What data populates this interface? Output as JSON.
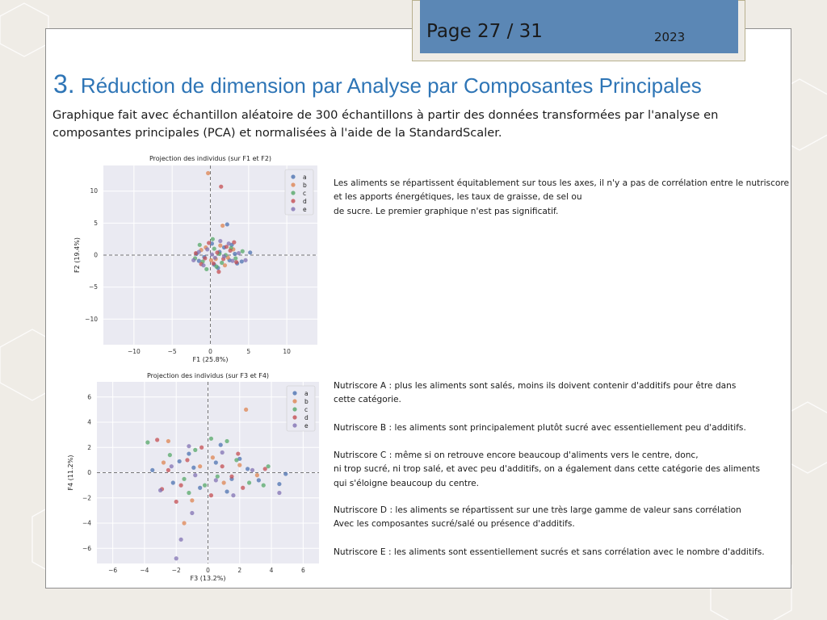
{
  "header": {
    "page_label": "Page 27 / 31",
    "year": "2023"
  },
  "title": {
    "number": "3.",
    "text": " Réduction de dimension par Analyse par Composantes Principales"
  },
  "subtitle": "Graphique fait avec échantillon aléatoire de 300 échantillons à partir des données transformées par l'analyse en composantes principales (PCA) et normalisées à l'aide de la StandardScaler.",
  "colors": {
    "title_blue": "#2e75b6",
    "page_box": "#5b87b5",
    "plot_bg": "#eaeaf2",
    "series": [
      "#4c72b0",
      "#dd8452",
      "#55a868",
      "#c44e52",
      "#8172b3"
    ]
  },
  "chart_data": [
    {
      "type": "scatter",
      "title": "Projection des individus (sur F1 et F2)",
      "xlabel": "F1 (25.8%)",
      "ylabel": "F2 (19.4%)",
      "xlim": [
        -14,
        14
      ],
      "ylim": [
        -14,
        14
      ],
      "xticks": [
        -10,
        -5,
        0,
        5,
        10
      ],
      "yticks": [
        10,
        5,
        0,
        -5,
        -10
      ],
      "grid": true,
      "legend_position": "top-right",
      "series": [
        {
          "name": "a",
          "color": "#4c72b0",
          "points": [
            [
              1.2,
              0.5
            ],
            [
              2.5,
              -0.8
            ],
            [
              -0.8,
              -0.3
            ],
            [
              3.2,
              0.2
            ],
            [
              0.5,
              -1.5
            ],
            [
              1.8,
              1.2
            ],
            [
              -1.5,
              -0.9
            ],
            [
              4.1,
              -1.0
            ],
            [
              2.2,
              4.8
            ],
            [
              0.2,
              1.8
            ],
            [
              -1.8,
              0.2
            ],
            [
              3.5,
              -1.3
            ],
            [
              1.0,
              -2.0
            ],
            [
              5.2,
              0.4
            ],
            [
              2.8,
              1.6
            ]
          ]
        },
        {
          "name": "b",
          "color": "#dd8452",
          "points": [
            [
              -0.3,
              12.8
            ],
            [
              1.3,
              1.5
            ],
            [
              0.7,
              -0.6
            ],
            [
              -1.2,
              0.8
            ],
            [
              2.3,
              -0.4
            ],
            [
              1.6,
              4.6
            ],
            [
              0.1,
              -0.8
            ],
            [
              3.0,
              0.9
            ],
            [
              -0.6,
              1.2
            ],
            [
              1.9,
              -1.6
            ]
          ]
        },
        {
          "name": "c",
          "color": "#55a868",
          "points": [
            [
              0.5,
              1.0
            ],
            [
              -1.0,
              -1.0
            ],
            [
              2.0,
              0.0
            ],
            [
              1.5,
              -1.2
            ],
            [
              -2.0,
              -0.5
            ],
            [
              0.3,
              2.5
            ],
            [
              3.3,
              -0.5
            ],
            [
              -0.5,
              -2.2
            ],
            [
              1.2,
              0.2
            ],
            [
              2.7,
              1.1
            ],
            [
              -1.4,
              1.6
            ],
            [
              0.8,
              -1.8
            ],
            [
              4.2,
              0.6
            ]
          ]
        },
        {
          "name": "d",
          "color": "#c44e52",
          "points": [
            [
              1.4,
              10.7
            ],
            [
              0.9,
              0.4
            ],
            [
              -0.7,
              -0.5
            ],
            [
              2.1,
              1.3
            ],
            [
              1.7,
              -0.6
            ],
            [
              -1.9,
              0.3
            ],
            [
              3.4,
              -1.1
            ],
            [
              0.4,
              -1.3
            ],
            [
              2.6,
              0.7
            ],
            [
              -0.2,
              1.9
            ],
            [
              1.1,
              -2.6
            ],
            [
              -1.2,
              -1.4
            ],
            [
              3.1,
              2.0
            ]
          ]
        },
        {
          "name": "e",
          "color": "#8172b3",
          "points": [
            [
              0.2,
              0.1
            ],
            [
              -1.5,
              0.5
            ],
            [
              1.8,
              -0.2
            ],
            [
              2.9,
              -0.9
            ],
            [
              -0.9,
              -1.6
            ],
            [
              1.3,
              2.2
            ],
            [
              4.6,
              -0.8
            ],
            [
              0.6,
              -0.4
            ],
            [
              -2.2,
              -0.8
            ],
            [
              2.4,
              1.8
            ],
            [
              3.7,
              0.3
            ],
            [
              -0.4,
              0.9
            ]
          ]
        }
      ]
    },
    {
      "type": "scatter",
      "title": "Projection des individus (sur F3 et F4)",
      "xlabel": "F3 (13.2%)",
      "ylabel": "F4 (11.2%)",
      "xlim": [
        -7,
        7
      ],
      "ylim": [
        -7.2,
        7.2
      ],
      "xticks": [
        -6,
        -4,
        -2,
        0,
        2,
        4,
        6
      ],
      "yticks": [
        6,
        4,
        2,
        0,
        -2,
        -4,
        -6
      ],
      "grid": true,
      "legend_position": "top-right",
      "series": [
        {
          "name": "a",
          "color": "#4c72b0",
          "points": [
            [
              -3.5,
              0.2
            ],
            [
              0.5,
              0.8
            ],
            [
              1.5,
              -0.5
            ],
            [
              -1.2,
              1.5
            ],
            [
              2.5,
              0.3
            ],
            [
              4.5,
              -0.9
            ],
            [
              -0.5,
              -1.2
            ],
            [
              3.2,
              -0.6
            ],
            [
              -2.2,
              -0.8
            ],
            [
              0.8,
              2.2
            ],
            [
              -1.8,
              0.9
            ],
            [
              1.2,
              -1.5
            ],
            [
              4.9,
              -0.1
            ],
            [
              -0.9,
              0.4
            ],
            [
              2.0,
              1.1
            ]
          ]
        },
        {
          "name": "b",
          "color": "#dd8452",
          "points": [
            [
              2.4,
              5.0
            ],
            [
              -1.5,
              -4.0
            ],
            [
              -0.5,
              0.5
            ],
            [
              1.0,
              -0.8
            ],
            [
              -2.5,
              2.5
            ],
            [
              0.3,
              1.2
            ],
            [
              3.1,
              -0.2
            ],
            [
              -1.0,
              -2.2
            ],
            [
              2.0,
              0.6
            ],
            [
              -2.8,
              0.8
            ]
          ]
        },
        {
          "name": "c",
          "color": "#55a868",
          "points": [
            [
              -3.8,
              2.4
            ],
            [
              0.2,
              2.7
            ],
            [
              1.8,
              1.0
            ],
            [
              -1.5,
              -0.5
            ],
            [
              3.5,
              -1.0
            ],
            [
              -0.8,
              1.8
            ],
            [
              2.6,
              -0.8
            ],
            [
              -2.4,
              1.4
            ],
            [
              0.6,
              -0.3
            ],
            [
              -1.2,
              -1.6
            ],
            [
              3.8,
              0.5
            ],
            [
              1.2,
              2.5
            ],
            [
              -0.2,
              -1.0
            ]
          ]
        },
        {
          "name": "d",
          "color": "#c44e52",
          "points": [
            [
              -3.2,
              2.6
            ],
            [
              -2.5,
              0.2
            ],
            [
              0.9,
              0.5
            ],
            [
              -1.7,
              -1.0
            ],
            [
              2.2,
              -1.2
            ],
            [
              -0.4,
              2.0
            ],
            [
              1.5,
              -0.3
            ],
            [
              -2.0,
              -2.3
            ],
            [
              3.6,
              0.3
            ],
            [
              -1.3,
              1.0
            ],
            [
              0.2,
              -1.8
            ],
            [
              -2.9,
              -1.3
            ],
            [
              1.9,
              1.5
            ]
          ]
        },
        {
          "name": "e",
          "color": "#8172b3",
          "points": [
            [
              -2.0,
              -6.8
            ],
            [
              -1.7,
              -5.3
            ],
            [
              -1.2,
              2.1
            ],
            [
              4.5,
              -1.6
            ],
            [
              0.5,
              -0.6
            ],
            [
              -3.0,
              -1.4
            ],
            [
              2.8,
              0.2
            ],
            [
              -0.8,
              -0.2
            ],
            [
              1.6,
              -1.8
            ],
            [
              -2.3,
              0.5
            ],
            [
              0.9,
              1.6
            ],
            [
              -1.0,
              -3.2
            ]
          ]
        }
      ]
    }
  ],
  "paragraphs": {
    "p1": "Les aliments se répartissent équitablement sur tous les axes, il n'y a pas de corrélation entre le nutriscore\net les apports énergétiques, les taux de graisse, de sel ou\nde sucre. Le premier graphique n'est pas significatif.",
    "nutri_a": "Nutriscore A : plus les aliments sont salés, moins ils doivent contenir d'additifs pour être dans\ncette catégorie.",
    "nutri_b": "Nutriscore B : les aliments sont principalement plutôt sucré avec essentiellement peu d'additifs.",
    "nutri_c": "Nutriscore C : même si on retrouve encore beaucoup d'aliments vers le centre, donc,\nni trop sucré, ni trop salé, et avec peu d'additifs, on a également dans cette catégorie des aliments\nqui s'éloigne beaucoup du centre.",
    "nutri_d": "Nutriscore D : les aliments se répartissent sur une très large gamme de valeur sans corrélation\nAvec les composantes sucré/salé ou présence d'additifs.",
    "nutri_e": "Nutriscore E : les aliments sont essentiellement sucrés et sans corrélation avec le nombre d'additifs."
  }
}
